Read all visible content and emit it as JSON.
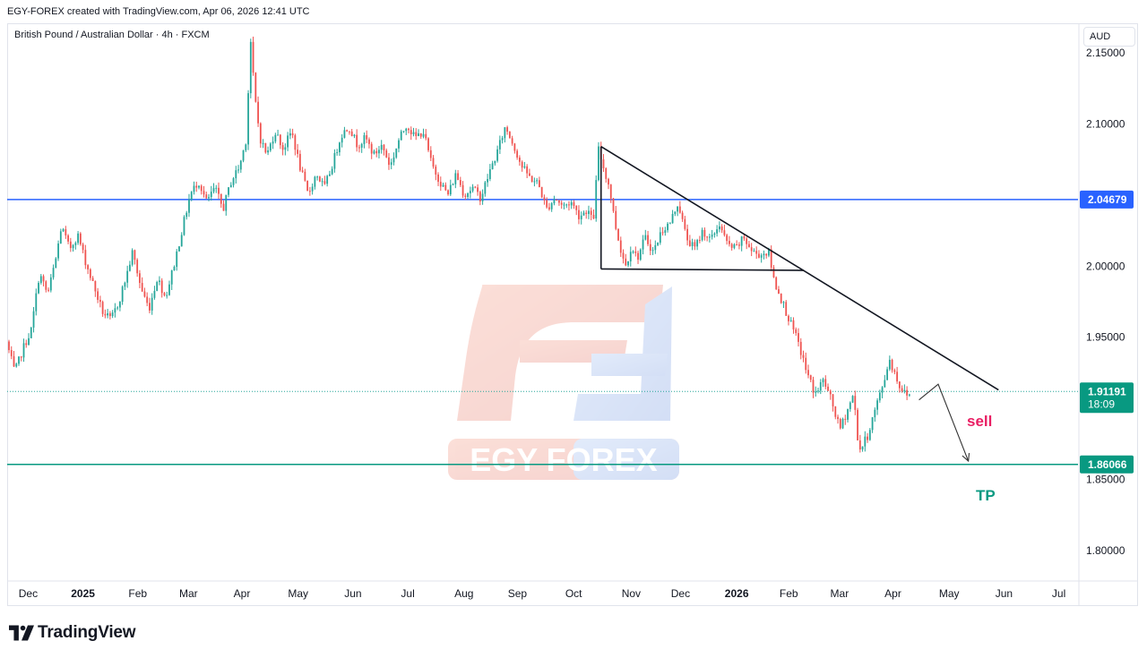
{
  "header": {
    "attribution": "EGY-FOREX created with TradingView.com, Apr 06, 2026 12:41 UTC"
  },
  "symbol": {
    "title": "British Pound / Australian Dollar · 4h · FXCM"
  },
  "axis": {
    "currency": "AUD"
  },
  "watermark": {
    "text": "EGY FOREX",
    "colors": [
      "#e8503a",
      "#5b8be0"
    ]
  },
  "footer": {
    "brand": "TradingView"
  },
  "colors": {
    "up": "#26a69a",
    "down": "#ef5350",
    "resistance": "#2962ff",
    "target": "#089981",
    "sell": "#e91e63",
    "trendline": "#131722"
  },
  "chart_data": {
    "type": "candlestick",
    "symbol": "GBPAUD",
    "timeframe": "4h",
    "x_ticks": [
      {
        "label": "Dec",
        "t": 0.7,
        "bold": false
      },
      {
        "label": "2025",
        "t": 2.7,
        "bold": true
      },
      {
        "label": "Feb",
        "t": 4.7,
        "bold": false
      },
      {
        "label": "Mar",
        "t": 6.55,
        "bold": false
      },
      {
        "label": "Apr",
        "t": 8.5,
        "bold": false
      },
      {
        "label": "May",
        "t": 10.55,
        "bold": false
      },
      {
        "label": "Jun",
        "t": 12.55,
        "bold": false
      },
      {
        "label": "Jul",
        "t": 14.55,
        "bold": false
      },
      {
        "label": "Aug",
        "t": 16.6,
        "bold": false
      },
      {
        "label": "Sep",
        "t": 18.55,
        "bold": false
      },
      {
        "label": "Oct",
        "t": 20.6,
        "bold": false
      },
      {
        "label": "Nov",
        "t": 22.7,
        "bold": false
      },
      {
        "label": "Dec",
        "t": 24.5,
        "bold": false
      },
      {
        "label": "2026",
        "t": 26.55,
        "bold": true
      },
      {
        "label": "Feb",
        "t": 28.45,
        "bold": false
      },
      {
        "label": "Mar",
        "t": 30.3,
        "bold": false
      },
      {
        "label": "Apr",
        "t": 32.25,
        "bold": false
      },
      {
        "label": "May",
        "t": 34.3,
        "bold": false
      },
      {
        "label": "Jun",
        "t": 36.3,
        "bold": false
      },
      {
        "label": "Jul",
        "t": 38.3,
        "bold": false
      }
    ],
    "y_axis": {
      "min": 1.78,
      "max": 2.17,
      "ticks": [
        "2.15000",
        "2.10000",
        "2.05000",
        "2.00000",
        "1.95000",
        "1.90000",
        "1.85000",
        "1.80000"
      ],
      "tick_values": [
        2.15,
        2.1,
        2.05,
        2.0,
        1.95,
        1.9,
        1.85,
        1.8
      ]
    },
    "price_path": [
      [
        0.0,
        1.947
      ],
      [
        0.3,
        1.925
      ],
      [
        0.6,
        1.942
      ],
      [
        0.9,
        1.955
      ],
      [
        1.2,
        1.995
      ],
      [
        1.5,
        1.98
      ],
      [
        1.8,
        2.005
      ],
      [
        2.0,
        2.028
      ],
      [
        2.3,
        2.012
      ],
      [
        2.6,
        2.022
      ],
      [
        2.9,
        2.002
      ],
      [
        3.2,
        1.985
      ],
      [
        3.5,
        1.968
      ],
      [
        3.8,
        1.962
      ],
      [
        4.1,
        1.975
      ],
      [
        4.4,
        1.995
      ],
      [
        4.6,
        2.01
      ],
      [
        4.9,
        1.985
      ],
      [
        5.2,
        1.97
      ],
      [
        5.5,
        1.992
      ],
      [
        5.8,
        1.978
      ],
      [
        6.1,
        2.0
      ],
      [
        6.4,
        2.025
      ],
      [
        6.7,
        2.05
      ],
      [
        7.0,
        2.06
      ],
      [
        7.3,
        2.045
      ],
      [
        7.6,
        2.055
      ],
      [
        7.9,
        2.04
      ],
      [
        8.2,
        2.06
      ],
      [
        8.5,
        2.07
      ],
      [
        8.75,
        2.09
      ],
      [
        8.9,
        2.16
      ],
      [
        9.05,
        2.12
      ],
      [
        9.25,
        2.09
      ],
      [
        9.5,
        2.078
      ],
      [
        9.8,
        2.095
      ],
      [
        10.1,
        2.082
      ],
      [
        10.4,
        2.095
      ],
      [
        10.7,
        2.07
      ],
      [
        11.0,
        2.05
      ],
      [
        11.3,
        2.065
      ],
      [
        11.6,
        2.055
      ],
      [
        11.9,
        2.072
      ],
      [
        12.2,
        2.092
      ],
      [
        12.5,
        2.098
      ],
      [
        12.8,
        2.085
      ],
      [
        13.1,
        2.09
      ],
      [
        13.4,
        2.078
      ],
      [
        13.7,
        2.085
      ],
      [
        14.0,
        2.07
      ],
      [
        14.3,
        2.088
      ],
      [
        14.6,
        2.1
      ],
      [
        14.9,
        2.09
      ],
      [
        15.2,
        2.095
      ],
      [
        15.5,
        2.072
      ],
      [
        15.8,
        2.06
      ],
      [
        16.1,
        2.05
      ],
      [
        16.4,
        2.065
      ],
      [
        16.7,
        2.05
      ],
      [
        17.0,
        2.055
      ],
      [
        17.3,
        2.048
      ],
      [
        17.6,
        2.065
      ],
      [
        17.9,
        2.08
      ],
      [
        18.2,
        2.098
      ],
      [
        18.5,
        2.085
      ],
      [
        18.8,
        2.07
      ],
      [
        19.1,
        2.062
      ],
      [
        19.4,
        2.058
      ],
      [
        19.7,
        2.04
      ],
      [
        20.0,
        2.048
      ],
      [
        20.3,
        2.042
      ],
      [
        20.6,
        2.045
      ],
      [
        20.9,
        2.035
      ],
      [
        21.2,
        2.04
      ],
      [
        21.4,
        2.03
      ],
      [
        21.6,
        2.082
      ],
      [
        21.8,
        2.068
      ],
      [
        22.0,
        2.055
      ],
      [
        22.2,
        2.03
      ],
      [
        22.4,
        2.012
      ],
      [
        22.6,
        2.0
      ],
      [
        22.8,
        2.015
      ],
      [
        23.0,
        2.005
      ],
      [
        23.3,
        2.02
      ],
      [
        23.6,
        2.01
      ],
      [
        23.9,
        2.025
      ],
      [
        24.2,
        2.03
      ],
      [
        24.5,
        2.045
      ],
      [
        24.8,
        2.02
      ],
      [
        25.1,
        2.012
      ],
      [
        25.4,
        2.025
      ],
      [
        25.7,
        2.018
      ],
      [
        26.0,
        2.03
      ],
      [
        26.3,
        2.015
      ],
      [
        26.6,
        2.012
      ],
      [
        26.9,
        2.02
      ],
      [
        27.2,
        2.01
      ],
      [
        27.5,
        2.008
      ],
      [
        27.8,
        2.01
      ],
      [
        28.0,
        1.99
      ],
      [
        28.3,
        1.975
      ],
      [
        28.6,
        1.96
      ],
      [
        28.9,
        1.945
      ],
      [
        29.2,
        1.925
      ],
      [
        29.5,
        1.91
      ],
      [
        29.8,
        1.92
      ],
      [
        30.1,
        1.905
      ],
      [
        30.4,
        1.885
      ],
      [
        30.7,
        1.9
      ],
      [
        30.9,
        1.91
      ],
      [
        31.1,
        1.87
      ],
      [
        31.4,
        1.88
      ],
      [
        31.7,
        1.9
      ],
      [
        32.0,
        1.918
      ],
      [
        32.2,
        1.935
      ],
      [
        32.4,
        1.925
      ],
      [
        32.6,
        1.915
      ],
      [
        32.8,
        1.91
      ]
    ],
    "last_candle_t": 32.85,
    "resistance_level": {
      "price": 2.04679,
      "label": "2.04679"
    },
    "tp_level": {
      "price": 1.86066,
      "label": "1.86066",
      "text": "TP"
    },
    "current_price": {
      "price": 1.91191,
      "label": "1.91191",
      "countdown": "18:09"
    },
    "sell_text": "sell",
    "trendline": {
      "from": [
        21.6,
        2.084
      ],
      "to": [
        36.1,
        1.913
      ]
    },
    "pattern_triangle": {
      "apex": [
        21.6,
        2.084
      ],
      "base_left": [
        21.6,
        1.998
      ],
      "base_right": [
        29.0,
        1.997
      ]
    },
    "projection": [
      [
        33.2,
        1.906
      ],
      [
        33.9,
        1.917
      ],
      [
        35.0,
        1.863
      ]
    ]
  }
}
